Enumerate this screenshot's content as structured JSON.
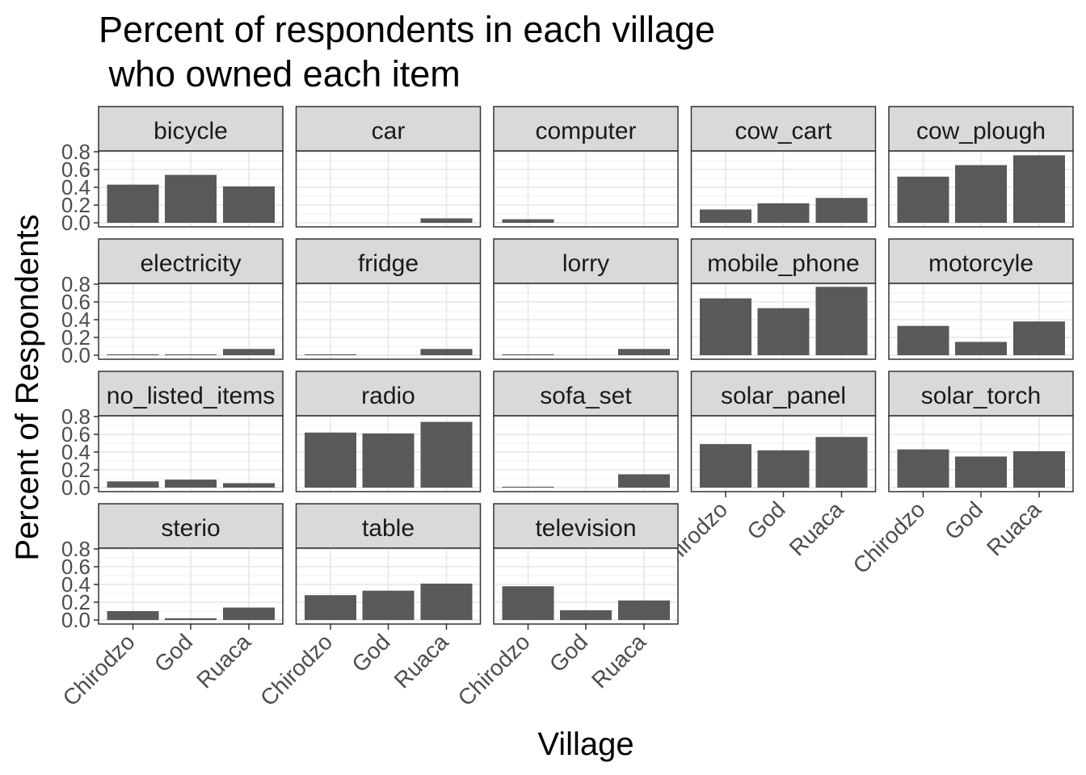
{
  "chart_data": {
    "type": "bar",
    "title_line1": "Percent of respondents in each village",
    "title_line2": " who owned each item",
    "xlabel": "Village",
    "ylabel": "Percent of Respondents",
    "categories": [
      "Chirodzo",
      "God",
      "Ruaca"
    ],
    "ylim": [
      0,
      0.8
    ],
    "yticks": [
      "0.0",
      "0.2",
      "0.4",
      "0.6",
      "0.8"
    ],
    "grid": true,
    "bar_color": "#595959",
    "strip_color": "#d9d9d9",
    "facets": [
      {
        "name": "bicycle",
        "values": [
          0.43,
          0.54,
          0.41
        ]
      },
      {
        "name": "car",
        "values": [
          0.0,
          0.0,
          0.05
        ]
      },
      {
        "name": "computer",
        "values": [
          0.04,
          0.0,
          0.0
        ]
      },
      {
        "name": "cow_cart",
        "values": [
          0.15,
          0.22,
          0.28
        ]
      },
      {
        "name": "cow_plough",
        "values": [
          0.52,
          0.65,
          0.76
        ]
      },
      {
        "name": "electricity",
        "values": [
          0.01,
          0.01,
          0.07
        ]
      },
      {
        "name": "fridge",
        "values": [
          0.01,
          0.0,
          0.07
        ]
      },
      {
        "name": "lorry",
        "values": [
          0.01,
          0.0,
          0.07
        ]
      },
      {
        "name": "mobile_phone",
        "values": [
          0.64,
          0.53,
          0.77
        ]
      },
      {
        "name": "motorcyle",
        "values": [
          0.33,
          0.15,
          0.38
        ]
      },
      {
        "name": "no_listed_items",
        "values": [
          0.07,
          0.09,
          0.05
        ]
      },
      {
        "name": "radio",
        "values": [
          0.62,
          0.61,
          0.74
        ]
      },
      {
        "name": "sofa_set",
        "values": [
          0.01,
          0.0,
          0.15
        ]
      },
      {
        "name": "solar_panel",
        "values": [
          0.49,
          0.42,
          0.57
        ]
      },
      {
        "name": "solar_torch",
        "values": [
          0.43,
          0.35,
          0.41
        ]
      },
      {
        "name": "sterio",
        "values": [
          0.1,
          0.02,
          0.14
        ]
      },
      {
        "name": "table",
        "values": [
          0.28,
          0.33,
          0.41
        ]
      },
      {
        "name": "television",
        "values": [
          0.38,
          0.11,
          0.22
        ]
      }
    ]
  }
}
